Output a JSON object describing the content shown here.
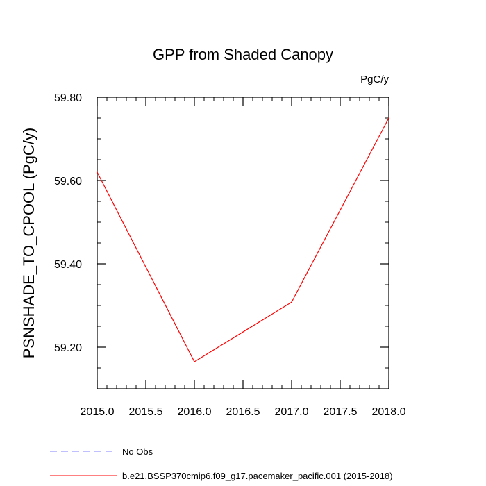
{
  "chart_data": {
    "type": "line",
    "title": "GPP from Shaded Canopy",
    "units_label": "PgC/y",
    "xlabel": "",
    "ylabel": "PSNSHADE_TO_CPOOL  (PgC/y)",
    "xlim": [
      2015.0,
      2018.0
    ],
    "ylim": [
      59.1,
      59.8
    ],
    "x_ticks": [
      "2015.0",
      "2015.5",
      "2016.0",
      "2016.5",
      "2017.0",
      "2017.5",
      "2018.0"
    ],
    "y_ticks": [
      "59.20",
      "59.40",
      "59.60",
      "59.80"
    ],
    "grid": false,
    "legend_position": "bottom",
    "series": [
      {
        "name": "b.e21.BSSP370cmip6.f09_g17.pacemaker_pacific.001 (2015-2018)",
        "color": "#ff0000",
        "style": "solid",
        "x": [
          2015.0,
          2016.0,
          2017.0,
          2018.0
        ],
        "y": [
          59.62,
          59.165,
          59.308,
          59.75
        ]
      }
    ],
    "legend": [
      {
        "label": "No Obs",
        "color": "#8080ff",
        "style": "dashed"
      },
      {
        "label": "b.e21.BSSP370cmip6.f09_g17.pacemaker_pacific.001 (2015-2018)",
        "color": "#ff0000",
        "style": "solid"
      }
    ]
  }
}
